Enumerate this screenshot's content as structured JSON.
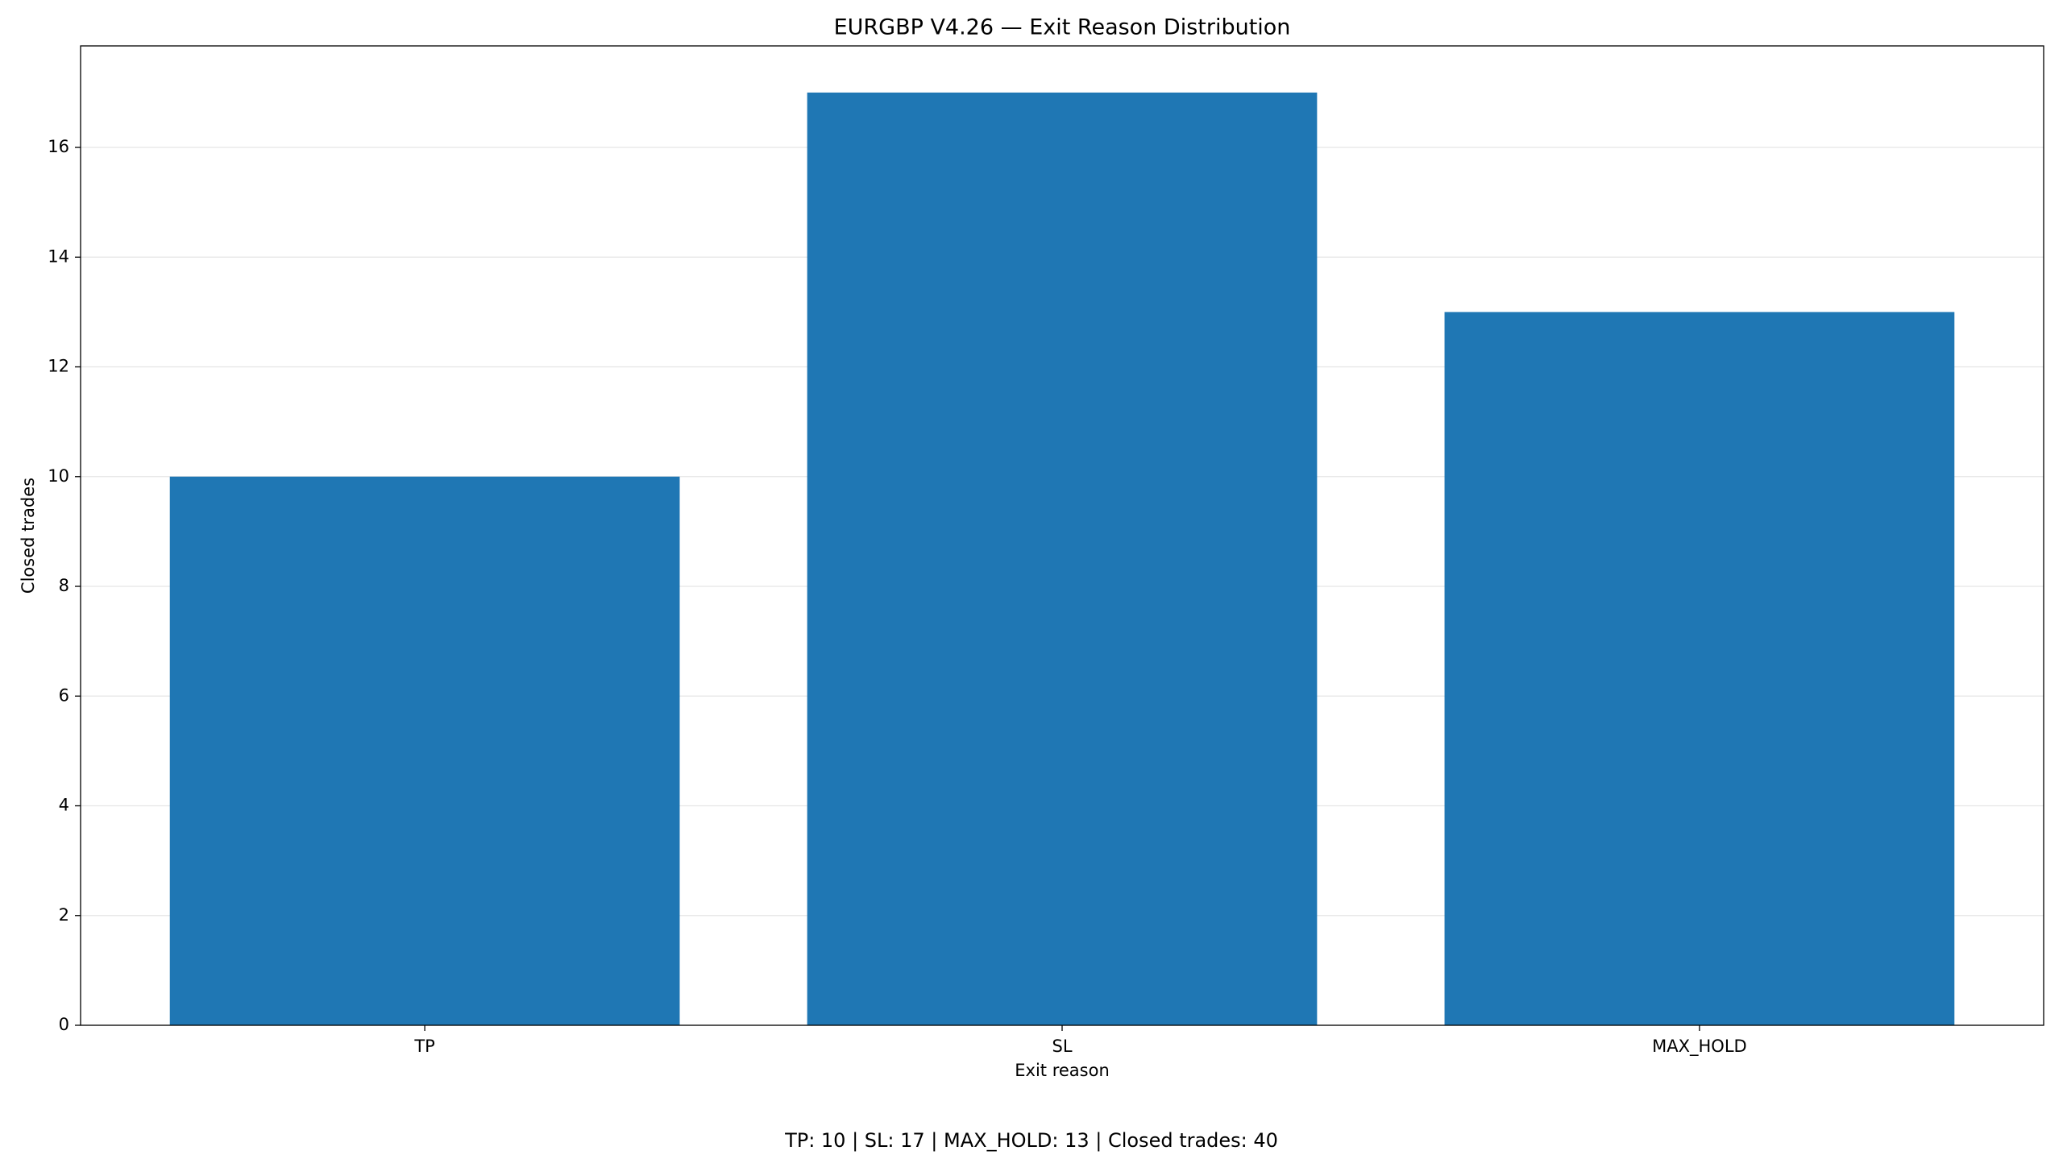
{
  "chart_data": {
    "type": "bar",
    "title": "EURGBP V4.26 — Exit Reason Distribution",
    "x_label": "Exit reason",
    "y_label": "Closed trades",
    "annotation": "TP: 10 | SL: 17 | MAX_HOLD: 13 | Closed trades: 40",
    "categories": [
      "TP",
      "SL",
      "MAX_HOLD"
    ],
    "values": [
      10,
      17,
      13
    ],
    "color": "#1f77b4",
    "ylim": [
      0,
      17.85
    ],
    "yticks": [
      0,
      2,
      4,
      6,
      8,
      10,
      12,
      14,
      16
    ],
    "grid": true
  }
}
